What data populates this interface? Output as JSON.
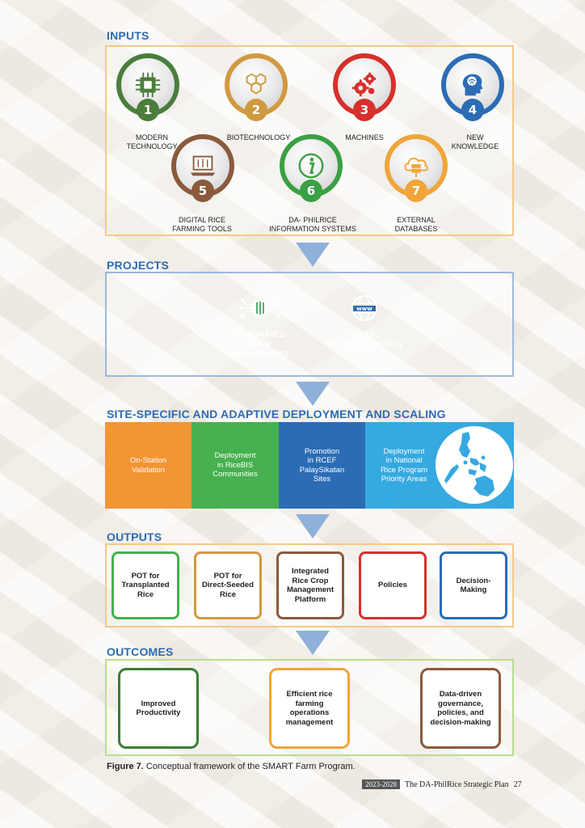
{
  "sections": {
    "inputs": "INPUTS",
    "projects": "PROJECTS",
    "deployment": "SITE-SPECIFIC AND ADAPTIVE DEPLOYMENT AND SCALING",
    "outputs": "OUTPUTS",
    "outcomes": "OUTCOMES"
  },
  "inputs": [
    {
      "num": "1",
      "label": "MODERN\nTECHNOLOGY",
      "color": "#4b7d3c",
      "icon": "chip-icon"
    },
    {
      "num": "2",
      "label": "BIOTECHNOLOGY",
      "color": "#d19a40",
      "icon": "hexagon-icon"
    },
    {
      "num": "3",
      "label": "MACHINES",
      "color": "#d6302c",
      "icon": "gears-icon"
    },
    {
      "num": "4",
      "label": "NEW\nKNOWLEDGE",
      "color": "#2b6cb5",
      "icon": "brain-head-icon"
    },
    {
      "num": "5",
      "label": "DIGITAL RICE\nFARMING TOOLS",
      "color": "#8a5a3c",
      "icon": "laptop-icon"
    },
    {
      "num": "6",
      "label": "DA- PHILRICE\nINFORMATION SYSTEMS",
      "color": "#3aa043",
      "icon": "info-icon"
    },
    {
      "num": "7",
      "label": "EXTERNAL\nDATABASES",
      "color": "#f0a53a",
      "icon": "cloud-database-icon"
    }
  ],
  "projects": [
    {
      "label": "INTEGRATED\nCROP\nMANAGEMENT",
      "color": "#2e9a48",
      "icon": "rice-network-icon"
    },
    {
      "label": "DIGITAL\nTRANSFORMATION",
      "color": "#2b6cb5",
      "icon": "globe-www-icon"
    }
  ],
  "deployment": [
    {
      "label": "On-Station\nValidation",
      "color": "#f29533"
    },
    {
      "label": "Deployment\nin RiceBIS\nCommunities",
      "color": "#46b14e"
    },
    {
      "label": "Promotion\nin RCEF\nPalaySikatan\nSites",
      "color": "#2b6cb5"
    },
    {
      "label": "Deployment\nin National\nRice Program\nPriority Areas",
      "color": "#36a9e1"
    }
  ],
  "outputs": [
    {
      "label": "POT for\nTransplanted\nRice",
      "color": "#46b14e"
    },
    {
      "label": "POT for\nDirect-Seeded\nRice",
      "color": "#d19a40"
    },
    {
      "label": "Integrated\nRice Crop\nManagement\nPlatform",
      "color": "#8a5a3c"
    },
    {
      "label": "Policies",
      "color": "#d6302c"
    },
    {
      "label": "Decision-\nMaking",
      "color": "#2b6cb5"
    }
  ],
  "outcomes": [
    {
      "label": "Improved\nProductivity",
      "color": "#3a7d35"
    },
    {
      "label": "Efficient rice\nfarming\noperations\nmanagement",
      "color": "#f0a53a"
    },
    {
      "label": "Data-driven\ngovernance,\npolicies, and\ndecision-making",
      "color": "#8a5a3c"
    }
  ],
  "caption": {
    "figure": "Figure 7.",
    "text": " Conceptual framework of the SMART Farm Program."
  },
  "footer": {
    "years": "2023-2028",
    "title": "The DA-PhilRice Strategic Plan",
    "page": "27"
  }
}
